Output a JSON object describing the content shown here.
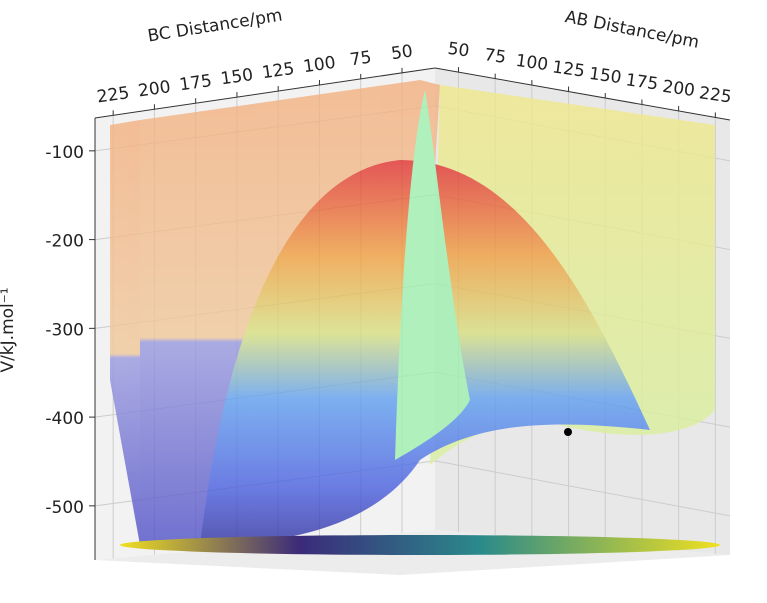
{
  "chart_data": {
    "type": "surface3d",
    "x_label": "BC Distance/pm",
    "y_label": "AB Distance/pm",
    "z_label": "V/kJ.mol⁻¹",
    "xlim": [
      30,
      236
    ],
    "xticks": [
      225,
      200,
      175,
      150,
      125,
      100,
      75,
      50
    ],
    "ylim": [
      34,
      235
    ],
    "yticks": [
      50,
      75,
      100,
      125,
      150,
      175,
      200,
      225
    ],
    "zlim": [
      -561,
      -63
    ],
    "zticks": [
      -100,
      -200,
      -300,
      -400,
      -500
    ],
    "grid": true
  }
}
